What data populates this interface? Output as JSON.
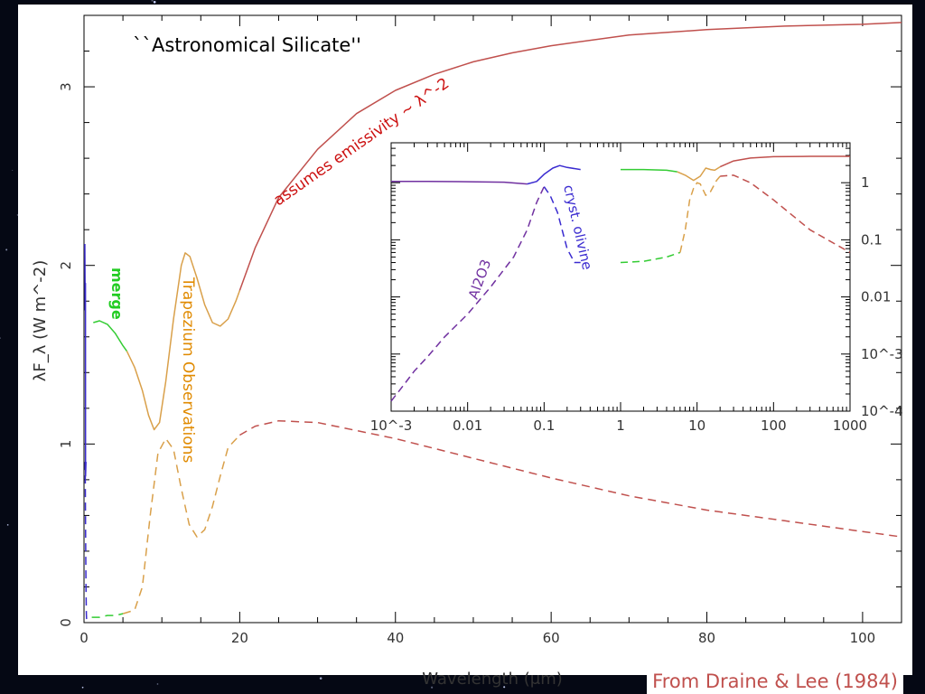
{
  "chart_data": [
    {
      "type": "line",
      "title": "``Astronomical Silicate''",
      "xlabel": "Wavelength (μm)",
      "ylabel": "λF_λ (W m^-2)",
      "xlim": [
        0,
        105
      ],
      "ylim": [
        0,
        3.4
      ],
      "x_ticks": [
        "0",
        "20",
        "40",
        "60",
        "80",
        "100"
      ],
      "y_ticks": [
        "0",
        "1",
        "2",
        "3"
      ],
      "grid": false,
      "annotations": {
        "emissivity": "assumes emissivity ~ λ^-2",
        "merge": "merge",
        "trapezium": "Trapezium Observations"
      },
      "series": [
        {
          "style": "solid",
          "color": "#3a2bd0",
          "points": [
            [
              0.1,
              2.12
            ],
            [
              0.15,
              1.75
            ],
            [
              0.18,
              1.9
            ],
            [
              0.2,
              0.82
            ],
            [
              0.25,
              0.9
            ]
          ]
        },
        {
          "style": "solid",
          "color": "#33cc33",
          "points": [
            [
              1.2,
              1.68
            ],
            [
              2,
              1.69
            ],
            [
              3,
              1.67
            ],
            [
              4,
              1.62
            ],
            [
              5,
              1.55
            ],
            [
              5.5,
              1.52
            ]
          ]
        },
        {
          "style": "solid",
          "color": "#d9a04a",
          "points": [
            [
              5.5,
              1.52
            ],
            [
              6.5,
              1.43
            ],
            [
              7.5,
              1.3
            ],
            [
              8.3,
              1.16
            ],
            [
              9,
              1.08
            ],
            [
              9.7,
              1.12
            ],
            [
              10.5,
              1.35
            ],
            [
              11.5,
              1.7
            ],
            [
              12.5,
              2.0
            ],
            [
              13,
              2.07
            ],
            [
              13.6,
              2.05
            ],
            [
              14.5,
              1.93
            ],
            [
              15.5,
              1.78
            ],
            [
              16.5,
              1.68
            ],
            [
              17.5,
              1.66
            ],
            [
              18.5,
              1.7
            ],
            [
              19.5,
              1.8
            ],
            [
              20,
              1.86
            ]
          ]
        },
        {
          "style": "solid",
          "color": "#c0504d",
          "points": [
            [
              20,
              1.86
            ],
            [
              22,
              2.1
            ],
            [
              25,
              2.38
            ],
            [
              30,
              2.65
            ],
            [
              35,
              2.85
            ],
            [
              40,
              2.98
            ],
            [
              45,
              3.07
            ],
            [
              50,
              3.14
            ],
            [
              55,
              3.19
            ],
            [
              60,
              3.23
            ],
            [
              70,
              3.29
            ],
            [
              80,
              3.32
            ],
            [
              90,
              3.34
            ],
            [
              100,
              3.35
            ],
            [
              105,
              3.36
            ]
          ]
        },
        {
          "style": "dashed",
          "color": "#3a2bd0",
          "points": [
            [
              0.15,
              0.9
            ],
            [
              0.2,
              0.55
            ],
            [
              0.25,
              0.2
            ],
            [
              0.3,
              0.05
            ],
            [
              0.35,
              0.0
            ]
          ]
        },
        {
          "style": "dashed",
          "color": "#33cc33",
          "points": [
            [
              1,
              0.03
            ],
            [
              2,
              0.03
            ],
            [
              3,
              0.04
            ],
            [
              4,
              0.04
            ],
            [
              5,
              0.05
            ]
          ]
        },
        {
          "style": "dashed",
          "color": "#d9a04a",
          "points": [
            [
              5,
              0.05
            ],
            [
              6.5,
              0.07
            ],
            [
              7.5,
              0.2
            ],
            [
              8.5,
              0.6
            ],
            [
              9.5,
              0.95
            ],
            [
              10.5,
              1.03
            ],
            [
              11.5,
              0.97
            ],
            [
              12.5,
              0.75
            ],
            [
              13.5,
              0.55
            ],
            [
              14.5,
              0.48
            ],
            [
              15.5,
              0.52
            ],
            [
              16.5,
              0.65
            ],
            [
              17.5,
              0.82
            ],
            [
              18.5,
              0.98
            ],
            [
              20,
              1.05
            ]
          ]
        },
        {
          "style": "dashed",
          "color": "#c0504d",
          "points": [
            [
              20,
              1.05
            ],
            [
              22,
              1.1
            ],
            [
              25,
              1.13
            ],
            [
              30,
              1.12
            ],
            [
              40,
              1.03
            ],
            [
              50,
              0.92
            ],
            [
              60,
              0.81
            ],
            [
              70,
              0.71
            ],
            [
              80,
              0.63
            ],
            [
              90,
              0.57
            ],
            [
              100,
              0.51
            ],
            [
              105,
              0.48
            ]
          ]
        }
      ]
    },
    {
      "type": "line",
      "title": "",
      "xscale": "log",
      "yscale": "log",
      "xlim": [
        0.001,
        1000
      ],
      "ylim": [
        0.0001,
        5
      ],
      "x_ticks": [
        "10^-3",
        "0.01",
        "0.1",
        "1",
        "10",
        "100",
        "1000"
      ],
      "y_ticks": [
        "1",
        "0.1",
        "0.01",
        "10^-3",
        "10^-4"
      ],
      "annotations": {
        "olivine": "cryst. olivine",
        "al2o3": "Al2O3"
      },
      "series": [
        {
          "style": "solid",
          "color": "#7030a0",
          "points": [
            [
              0.001,
              1.05
            ],
            [
              0.003,
              1.05
            ],
            [
              0.01,
              1.04
            ],
            [
              0.03,
              1.02
            ],
            [
              0.06,
              0.95
            ]
          ]
        },
        {
          "style": "solid",
          "color": "#3a2bd0",
          "points": [
            [
              0.06,
              0.95
            ],
            [
              0.08,
              1.05
            ],
            [
              0.1,
              1.4
            ],
            [
              0.13,
              1.8
            ],
            [
              0.16,
              2.0
            ],
            [
              0.2,
              1.85
            ],
            [
              0.3,
              1.7
            ]
          ]
        },
        {
          "style": "solid",
          "color": "#33cc33",
          "points": [
            [
              1,
              1.7
            ],
            [
              2,
              1.7
            ],
            [
              4,
              1.65
            ],
            [
              5.5,
              1.55
            ]
          ]
        },
        {
          "style": "solid",
          "color": "#d9a04a",
          "points": [
            [
              5.5,
              1.55
            ],
            [
              7,
              1.35
            ],
            [
              9,
              1.1
            ],
            [
              11,
              1.3
            ],
            [
              13,
              1.8
            ],
            [
              15,
              1.7
            ],
            [
              17,
              1.65
            ],
            [
              20,
              1.9
            ]
          ]
        },
        {
          "style": "solid",
          "color": "#c0504d",
          "points": [
            [
              20,
              1.9
            ],
            [
              30,
              2.4
            ],
            [
              50,
              2.7
            ],
            [
              100,
              2.85
            ],
            [
              300,
              2.9
            ],
            [
              1000,
              2.9
            ]
          ]
        },
        {
          "style": "dashed",
          "color": "#7030a0",
          "points": [
            [
              0.001,
              0.00015
            ],
            [
              0.0015,
              0.0003
            ],
            [
              0.002,
              0.0005
            ],
            [
              0.003,
              0.0009
            ],
            [
              0.005,
              0.002
            ],
            [
              0.01,
              0.005
            ],
            [
              0.02,
              0.015
            ],
            [
              0.04,
              0.05
            ],
            [
              0.06,
              0.15
            ],
            [
              0.08,
              0.45
            ],
            [
              0.1,
              0.85
            ]
          ]
        },
        {
          "style": "dashed",
          "color": "#3a2bd0",
          "points": [
            [
              0.1,
              0.85
            ],
            [
              0.12,
              0.6
            ],
            [
              0.15,
              0.3
            ],
            [
              0.2,
              0.07
            ],
            [
              0.25,
              0.04
            ],
            [
              0.3,
              0.04
            ]
          ]
        },
        {
          "style": "dashed",
          "color": "#33cc33",
          "points": [
            [
              1,
              0.04
            ],
            [
              2,
              0.042
            ],
            [
              4,
              0.05
            ],
            [
              6,
              0.06
            ]
          ]
        },
        {
          "style": "dashed",
          "color": "#d9a04a",
          "points": [
            [
              6,
              0.06
            ],
            [
              7,
              0.15
            ],
            [
              8,
              0.5
            ],
            [
              9,
              0.8
            ],
            [
              10,
              1.0
            ],
            [
              11,
              0.95
            ],
            [
              13,
              0.6
            ],
            [
              15,
              0.7
            ],
            [
              18,
              1.1
            ],
            [
              20,
              1.3
            ]
          ]
        },
        {
          "style": "dashed",
          "color": "#c0504d",
          "points": [
            [
              20,
              1.3
            ],
            [
              30,
              1.35
            ],
            [
              50,
              1.0
            ],
            [
              100,
              0.5
            ],
            [
              300,
              0.15
            ],
            [
              1000,
              0.06
            ]
          ]
        }
      ]
    }
  ],
  "credit": "From Draine & Lee (1984)"
}
